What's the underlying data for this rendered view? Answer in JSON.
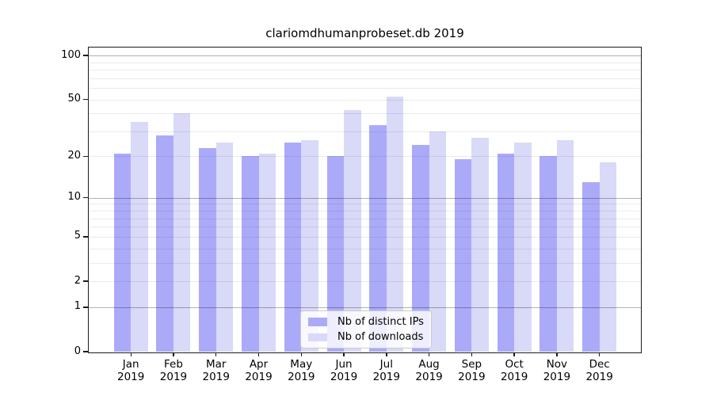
{
  "chart_data": {
    "type": "bar",
    "title": "clariomdhumanprobeset.db 2019",
    "categories": [
      "Jan 2019",
      "Feb 2019",
      "Mar 2019",
      "Apr 2019",
      "May 2019",
      "Jun 2019",
      "Jul 2019",
      "Aug 2019",
      "Sep 2019",
      "Oct 2019",
      "Nov 2019",
      "Dec 2019"
    ],
    "series": [
      {
        "name": "Nb of distinct IPs",
        "color": "#abaaf9",
        "values": [
          21,
          28,
          23,
          20,
          25,
          20,
          33,
          24,
          19,
          21,
          20,
          13
        ]
      },
      {
        "name": "Nb of downloads",
        "color": "#d9d9f8",
        "values": [
          35,
          40,
          25,
          21,
          26,
          42,
          52,
          30,
          27,
          25,
          26,
          18
        ]
      }
    ],
    "xlabel": "",
    "ylabel": "",
    "yscale": "log1p",
    "ylim": [
      0,
      113.5
    ],
    "yticks_labeled": [
      0,
      1,
      2,
      5,
      10,
      20,
      50,
      100
    ],
    "gridlines_major": [
      1,
      10,
      100
    ],
    "gridlines_minor": [
      2,
      3,
      4,
      5,
      6,
      7,
      8,
      9,
      20,
      30,
      40,
      50,
      60,
      70,
      80,
      90
    ],
    "grid": true,
    "legend_position": "lower center"
  }
}
